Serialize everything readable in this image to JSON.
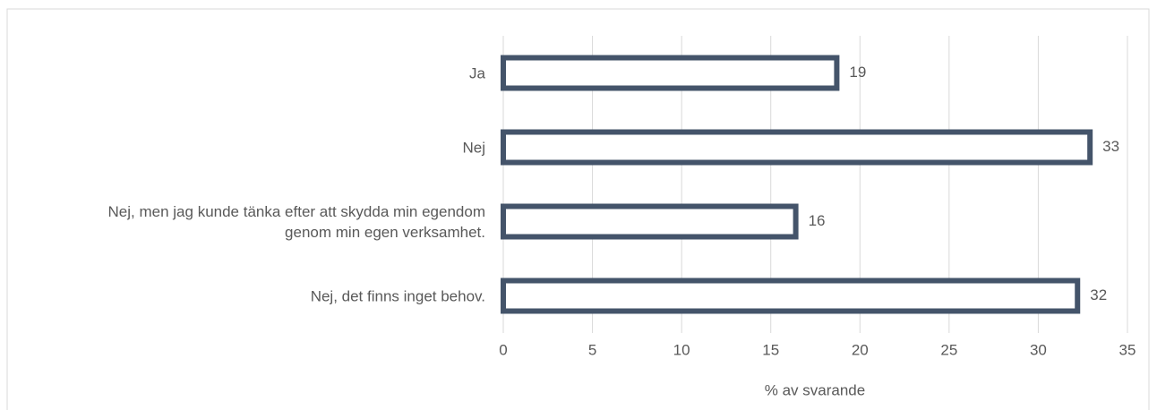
{
  "chart_data": {
    "type": "bar",
    "orientation": "horizontal",
    "categories": [
      "Ja",
      "Nej",
      "Nej, men jag kunde tänka efter att skydda min egendom genom min egen verksamhet.",
      "Nej, det finns inget behov."
    ],
    "values": [
      18.7,
      32.9,
      16.4,
      32.2
    ],
    "value_labels": [
      "19",
      "33",
      "16",
      "32"
    ],
    "color": "#44546a",
    "xlabel": "% av svarande",
    "xlim": [
      0,
      35
    ],
    "xticks": [
      0,
      5,
      10,
      15,
      20,
      25,
      30,
      35
    ],
    "grid": true
  }
}
